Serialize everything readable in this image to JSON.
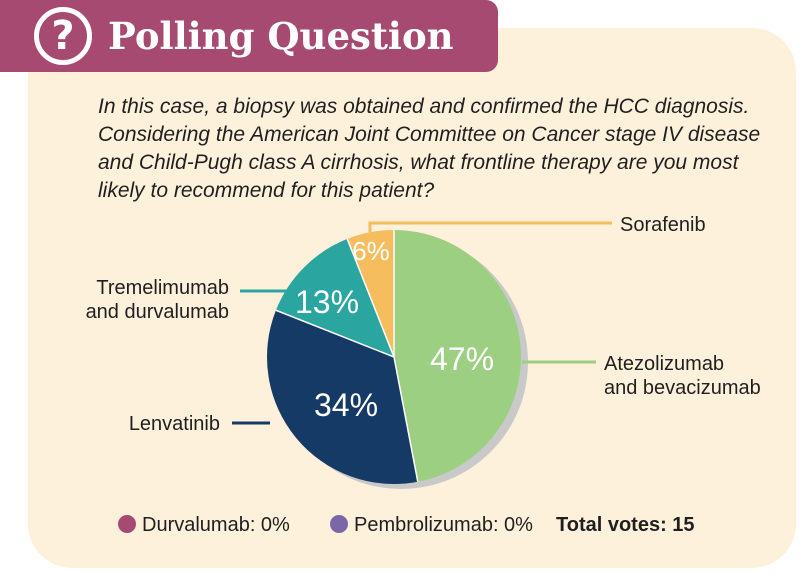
{
  "header": {
    "icon": "question-mark-icon",
    "title": "Polling Question"
  },
  "question": "In this case, a biopsy was obtained and confirmed the HCC diagnosis. Considering the American Joint Committee on Cancer stage IV disease and Child-Pugh class A cirrhosis, what frontline therapy are you most likely to recommend for this patient?",
  "chart_data": {
    "type": "pie",
    "slices": [
      {
        "label": "Atezolizumab and bevacizumab",
        "label_lines": [
          "Atezolizumab",
          "and bevacizumab"
        ],
        "value": 47,
        "display": "47%",
        "color": "#9ccf82"
      },
      {
        "label": "Lenvatinib",
        "label_lines": [
          "Lenvatinib"
        ],
        "value": 34,
        "display": "34%",
        "color": "#163a66"
      },
      {
        "label": "Tremelimumab and durvalumab",
        "label_lines": [
          "Tremelimumab",
          "and durvalumab"
        ],
        "value": 13,
        "display": "13%",
        "color": "#2aa5a0"
      },
      {
        "label": "Sorafenib",
        "label_lines": [
          "Sorafenib"
        ],
        "value": 6,
        "display": "6%",
        "color": "#f5bd5d"
      }
    ],
    "zero_options": [
      {
        "label": "Durvalumab: 0%",
        "value": 0,
        "color": "#a64a72"
      },
      {
        "label": "Pembrolizumab: 0%",
        "value": 0,
        "color": "#7a67a8"
      }
    ],
    "total_votes_label": "Total votes: 15"
  },
  "colors": {
    "banner": "#a64a72",
    "panel": "#fdf1dc",
    "shadow": "#c9c9c9"
  }
}
